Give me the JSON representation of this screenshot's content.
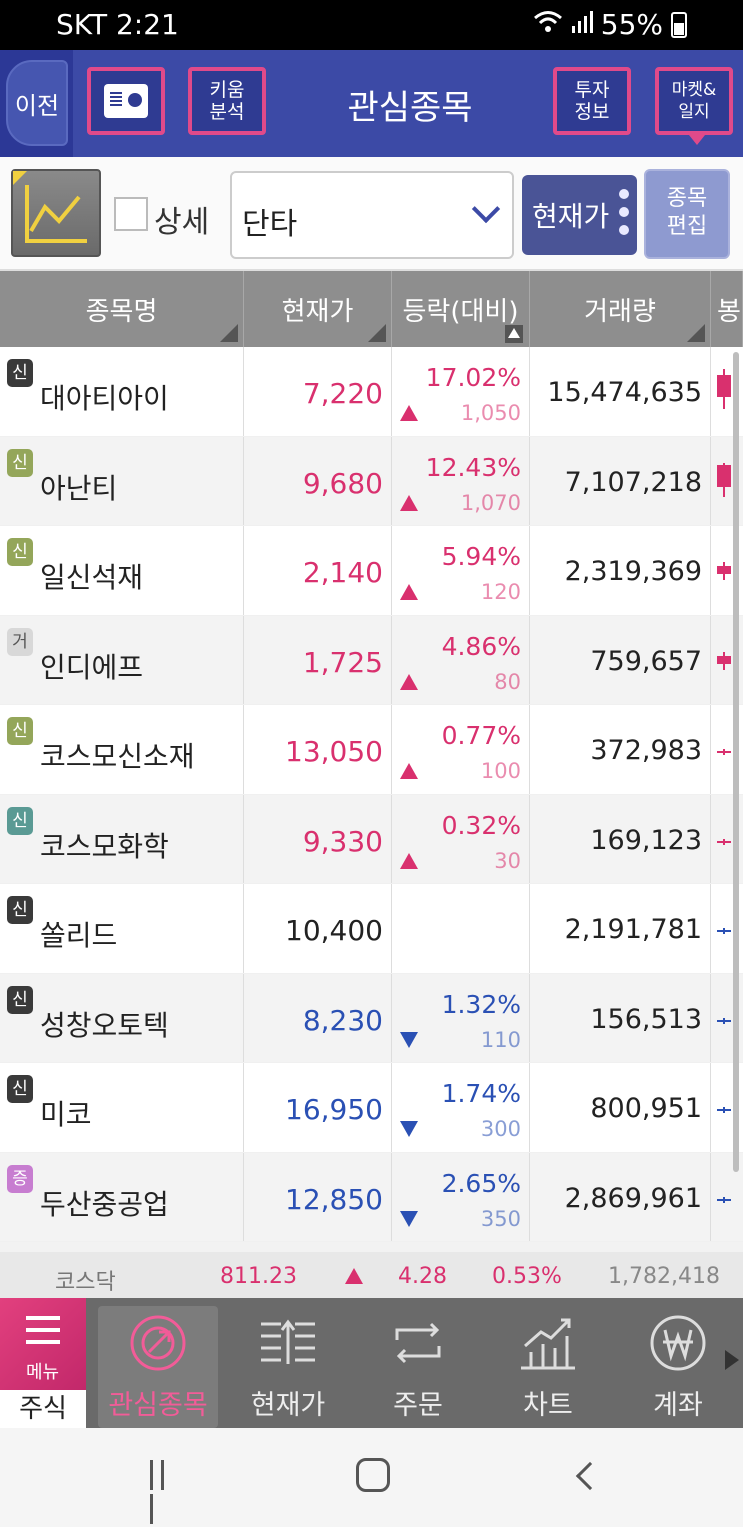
{
  "status_bar": {
    "carrier_time": "SKT 2:21",
    "battery": "55%"
  },
  "header": {
    "back": "이전",
    "kiwoom": [
      "키움",
      "분석"
    ],
    "title": "관심종목",
    "invest": [
      "투자",
      "정보"
    ],
    "market": [
      "마켓&",
      "일지"
    ]
  },
  "toolbar": {
    "detail_label": "상세",
    "group_select": "단타",
    "price_mode": "현재가",
    "edit": [
      "종목",
      "편집"
    ]
  },
  "columns": {
    "name": "종목명",
    "price": "현재가",
    "change": "등락(대비)",
    "volume": "거래량",
    "candle": "봉"
  },
  "colors": {
    "up": "#d9306e",
    "down": "#2a50b4",
    "header_bg": "#3c4aa6",
    "accent": "#e04a8a"
  },
  "rows": [
    {
      "badge": "신",
      "badge_style": "dark",
      "name": "대아티아이",
      "price": "7,220",
      "dir": "up",
      "pct": "17.02%",
      "diff": "1,050",
      "volume": "15,474,635"
    },
    {
      "badge": "신",
      "badge_style": "olive",
      "name": "아난티",
      "price": "9,680",
      "dir": "up",
      "pct": "12.43%",
      "diff": "1,070",
      "volume": "7,107,218"
    },
    {
      "badge": "신",
      "badge_style": "olive",
      "name": "일신석재",
      "price": "2,140",
      "dir": "up",
      "pct": "5.94%",
      "diff": "120",
      "volume": "2,319,369"
    },
    {
      "badge": "거",
      "badge_style": "gray",
      "name": "인디에프",
      "price": "1,725",
      "dir": "up",
      "pct": "4.86%",
      "diff": "80",
      "volume": "759,657"
    },
    {
      "badge": "신",
      "badge_style": "olive",
      "name": "코스모신소재",
      "price": "13,050",
      "dir": "up",
      "pct": "0.77%",
      "diff": "100",
      "volume": "372,983"
    },
    {
      "badge": "신",
      "badge_style": "teal",
      "name": "코스모화학",
      "price": "9,330",
      "dir": "up",
      "pct": "0.32%",
      "diff": "30",
      "volume": "169,123"
    },
    {
      "badge": "신",
      "badge_style": "dark",
      "name": "쏠리드",
      "price": "10,400",
      "dir": "flat",
      "pct": "",
      "diff": "",
      "volume": "2,191,781"
    },
    {
      "badge": "신",
      "badge_style": "dark",
      "name": "성창오토텍",
      "price": "8,230",
      "dir": "down",
      "pct": "1.32%",
      "diff": "110",
      "volume": "156,513"
    },
    {
      "badge": "신",
      "badge_style": "dark",
      "name": "미코",
      "price": "16,950",
      "dir": "down",
      "pct": "1.74%",
      "diff": "300",
      "volume": "800,951"
    },
    {
      "badge": "증",
      "badge_style": "purple",
      "name": "두산중공업",
      "price": "12,850",
      "dir": "down",
      "pct": "2.65%",
      "diff": "350",
      "volume": "2,869,961"
    }
  ],
  "index_ticker": {
    "name": "코스닥",
    "value": "811.23",
    "change": "4.28",
    "pct": "0.53%",
    "volume": "1,782,418"
  },
  "bottom_nav": {
    "menu": "메뉴",
    "stock": "주식",
    "items": [
      "관심종목",
      "현재가",
      "주문",
      "차트",
      "계좌"
    ]
  }
}
